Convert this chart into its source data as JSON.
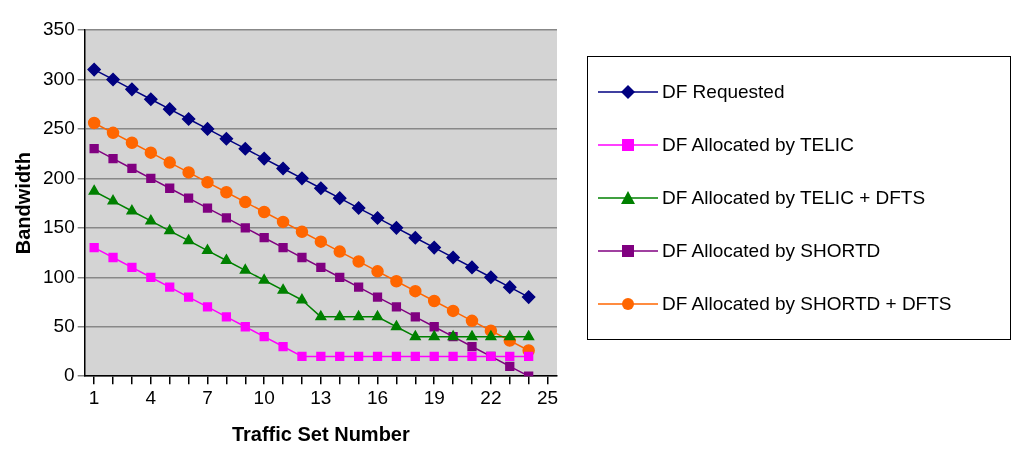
{
  "chart_data": {
    "type": "line",
    "xlabel": "Traffic Set Number",
    "ylabel": "Bandwidth",
    "x": [
      1,
      2,
      3,
      4,
      5,
      6,
      7,
      8,
      9,
      10,
      11,
      12,
      13,
      14,
      15,
      16,
      17,
      18,
      19,
      20,
      21,
      22,
      23,
      24
    ],
    "xlim": [
      0.5,
      25.5
    ],
    "xticks": [
      1,
      {
        "value": 2,
        "label": null
      },
      {
        "value": 3,
        "label": null
      },
      4,
      {
        "value": 5,
        "label": null
      },
      {
        "value": 6,
        "label": null
      },
      7,
      {
        "value": 8,
        "label": null
      },
      {
        "value": 9,
        "label": null
      },
      10,
      {
        "value": 11,
        "label": null
      },
      {
        "value": 12,
        "label": null
      },
      13,
      {
        "value": 14,
        "label": null
      },
      {
        "value": 15,
        "label": null
      },
      16,
      {
        "value": 17,
        "label": null
      },
      {
        "value": 18,
        "label": null
      },
      19,
      {
        "value": 20,
        "label": null
      },
      {
        "value": 21,
        "label": null
      },
      22,
      {
        "value": 23,
        "label": null
      },
      {
        "value": 24,
        "label": null
      },
      25
    ],
    "ylim": [
      0,
      350
    ],
    "yticks": [
      0,
      50,
      100,
      150,
      200,
      250,
      300,
      350
    ],
    "grid": "y",
    "legend": "right",
    "line_style": "solid",
    "series": [
      {
        "name": "DF Requested",
        "color": "#000080",
        "marker": "diamond",
        "values": [
          310,
          300,
          290,
          280,
          270,
          260,
          250,
          240,
          230,
          220,
          210,
          200,
          190,
          180,
          170,
          160,
          150,
          140,
          130,
          120,
          110,
          100,
          90,
          80
        ]
      },
      {
        "name": "DF Allocated by TELIC",
        "color": "#ff00ff",
        "marker": "square",
        "values": [
          130,
          120,
          110,
          100,
          90,
          80,
          70,
          60,
          50,
          40,
          30,
          20,
          20,
          20,
          20,
          20,
          20,
          20,
          20,
          20,
          20,
          20,
          20,
          20
        ]
      },
      {
        "name": "DF Allocated by TELIC + DFTS",
        "color": "#008000",
        "marker": "triangle",
        "values": [
          187,
          177,
          167,
          157,
          147,
          137,
          127,
          117,
          107,
          97,
          87,
          77,
          60,
          60,
          60,
          60,
          50,
          40,
          40,
          40,
          40,
          40,
          40,
          40
        ]
      },
      {
        "name": "DF Allocated by SHORTD",
        "color": "#800080",
        "marker": "square",
        "values": [
          230,
          220,
          210,
          200,
          190,
          180,
          170,
          160,
          150,
          140,
          130,
          120,
          110,
          100,
          90,
          80,
          70,
          60,
          50,
          40,
          30,
          20,
          10,
          0
        ]
      },
      {
        "name": "DF Allocated by SHORTD + DFTS",
        "color": "#ff6600",
        "marker": "circle",
        "values": [
          256,
          246,
          236,
          226,
          216,
          206,
          196,
          186,
          176,
          166,
          156,
          146,
          136,
          126,
          116,
          106,
          96,
          86,
          76,
          66,
          56,
          46,
          36,
          26
        ]
      }
    ]
  }
}
